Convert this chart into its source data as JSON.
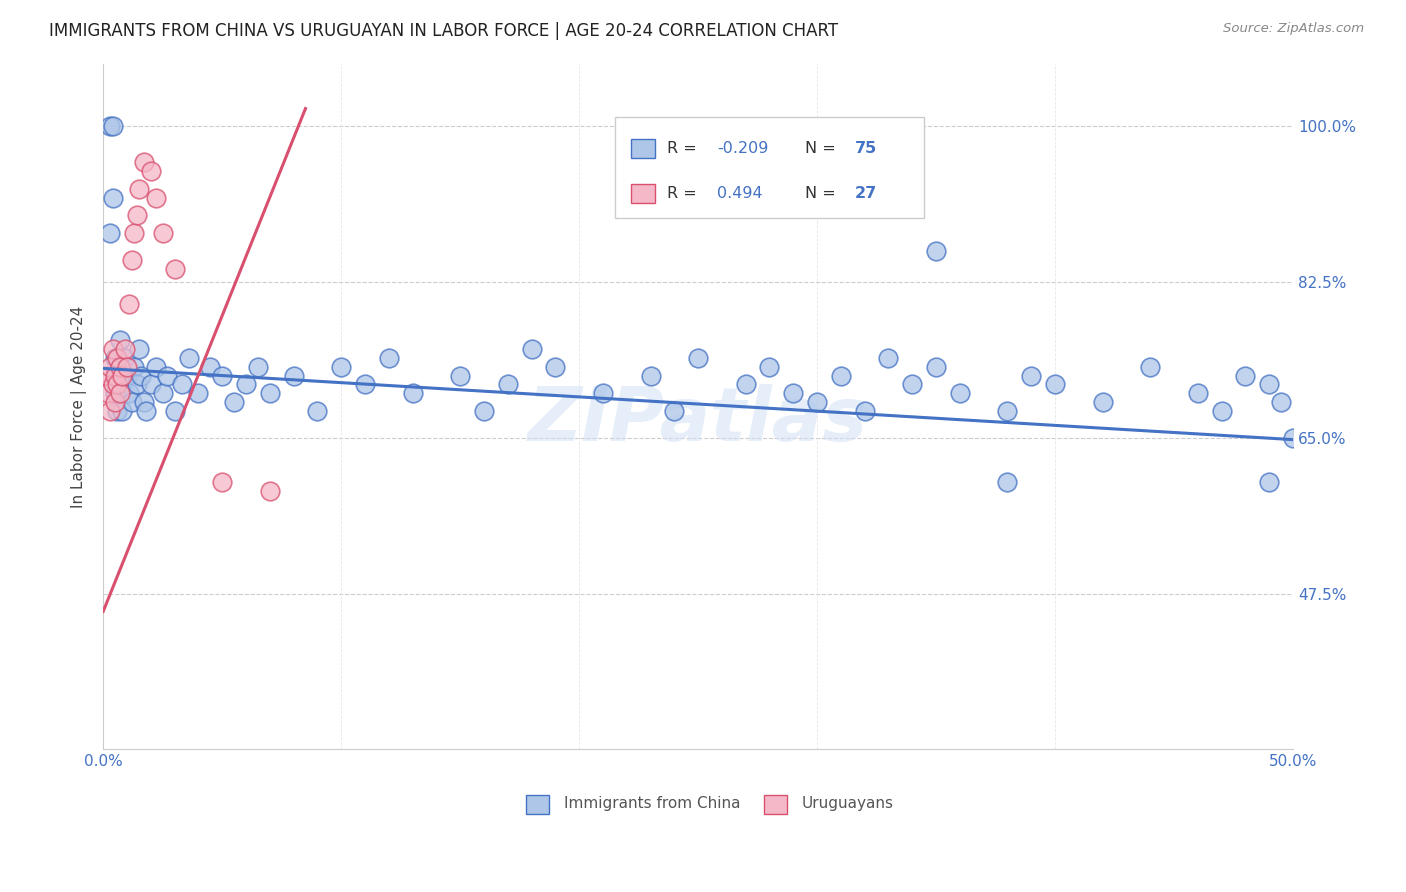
{
  "title": "IMMIGRANTS FROM CHINA VS URUGUAYAN IN LABOR FORCE | AGE 20-24 CORRELATION CHART",
  "source": "Source: ZipAtlas.com",
  "ylabel": "In Labor Force | Age 20-24",
  "x_min": 0.0,
  "x_max": 0.5,
  "y_min": 0.3,
  "y_max": 1.07,
  "yticks": [
    0.475,
    0.65,
    0.825,
    1.0
  ],
  "ytick_labels": [
    "47.5%",
    "65.0%",
    "82.5%",
    "100.0%"
  ],
  "color_china": "#aec6e8",
  "color_uruguay": "#f4b8c8",
  "line_color_china": "#4472c4",
  "line_color_uruguay": "#d94f6e",
  "watermark": "ZIPatlas",
  "blue_trend_x": [
    0.0,
    0.5
  ],
  "blue_trend_y": [
    0.728,
    0.648
  ],
  "pink_trend_x": [
    0.0,
    0.085
  ],
  "pink_trend_y": [
    0.455,
    1.02
  ],
  "blue_x": [
    0.003,
    0.004,
    0.005,
    0.005,
    0.006,
    0.006,
    0.007,
    0.007,
    0.008,
    0.008,
    0.009,
    0.01,
    0.011,
    0.012,
    0.013,
    0.014,
    0.015,
    0.016,
    0.017,
    0.018,
    0.02,
    0.022,
    0.025,
    0.027,
    0.03,
    0.033,
    0.036,
    0.04,
    0.045,
    0.05,
    0.055,
    0.06,
    0.065,
    0.07,
    0.08,
    0.09,
    0.1,
    0.11,
    0.12,
    0.13,
    0.15,
    0.16,
    0.17,
    0.18,
    0.19,
    0.21,
    0.23,
    0.24,
    0.25,
    0.27,
    0.28,
    0.29,
    0.3,
    0.31,
    0.32,
    0.33,
    0.34,
    0.35,
    0.36,
    0.38,
    0.39,
    0.4,
    0.42,
    0.44,
    0.46,
    0.47,
    0.48,
    0.49,
    0.495,
    0.5,
    0.003,
    0.004,
    0.35,
    0.38,
    0.49
  ],
  "blue_y": [
    1.0,
    1.0,
    0.74,
    0.7,
    0.72,
    0.68,
    0.76,
    0.73,
    0.71,
    0.68,
    0.74,
    0.72,
    0.7,
    0.69,
    0.73,
    0.71,
    0.75,
    0.72,
    0.69,
    0.68,
    0.71,
    0.73,
    0.7,
    0.72,
    0.68,
    0.71,
    0.74,
    0.7,
    0.73,
    0.72,
    0.69,
    0.71,
    0.73,
    0.7,
    0.72,
    0.68,
    0.73,
    0.71,
    0.74,
    0.7,
    0.72,
    0.68,
    0.71,
    0.75,
    0.73,
    0.7,
    0.72,
    0.68,
    0.74,
    0.71,
    0.73,
    0.7,
    0.69,
    0.72,
    0.68,
    0.74,
    0.71,
    0.73,
    0.7,
    0.68,
    0.72,
    0.71,
    0.69,
    0.73,
    0.7,
    0.68,
    0.72,
    0.71,
    0.69,
    0.65,
    0.88,
    0.92,
    0.86,
    0.6,
    0.6
  ],
  "pink_x": [
    0.001,
    0.002,
    0.003,
    0.003,
    0.004,
    0.004,
    0.005,
    0.005,
    0.006,
    0.006,
    0.007,
    0.007,
    0.008,
    0.009,
    0.01,
    0.011,
    0.012,
    0.013,
    0.014,
    0.015,
    0.017,
    0.02,
    0.022,
    0.025,
    0.03,
    0.05,
    0.07
  ],
  "pink_y": [
    0.72,
    0.7,
    0.68,
    0.73,
    0.71,
    0.75,
    0.72,
    0.69,
    0.74,
    0.71,
    0.73,
    0.7,
    0.72,
    0.75,
    0.73,
    0.8,
    0.85,
    0.88,
    0.9,
    0.93,
    0.96,
    0.95,
    0.92,
    0.88,
    0.84,
    0.6,
    0.59
  ]
}
